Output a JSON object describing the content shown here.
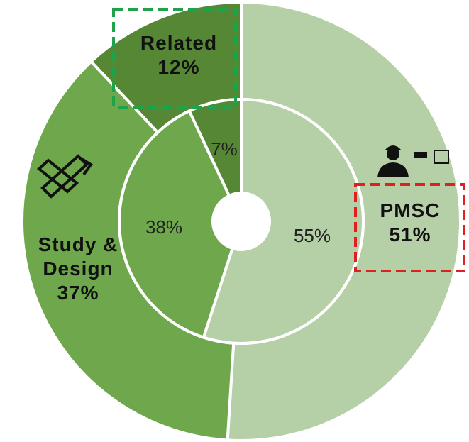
{
  "chart_data": {
    "type": "donut",
    "categories": [
      "PMSC",
      "Study & Design",
      "Related"
    ],
    "colors": [
      "#b5cfa6",
      "#6fa84c",
      "#568735"
    ],
    "series": [
      {
        "values": [
          51,
          37,
          12
        ],
        "value_labels": [
          "51%",
          "37%",
          "12%"
        ]
      },
      {
        "values": [
          55,
          38,
          7
        ],
        "value_labels": [
          "55%",
          "38%",
          "7%"
        ]
      }
    ]
  }
}
